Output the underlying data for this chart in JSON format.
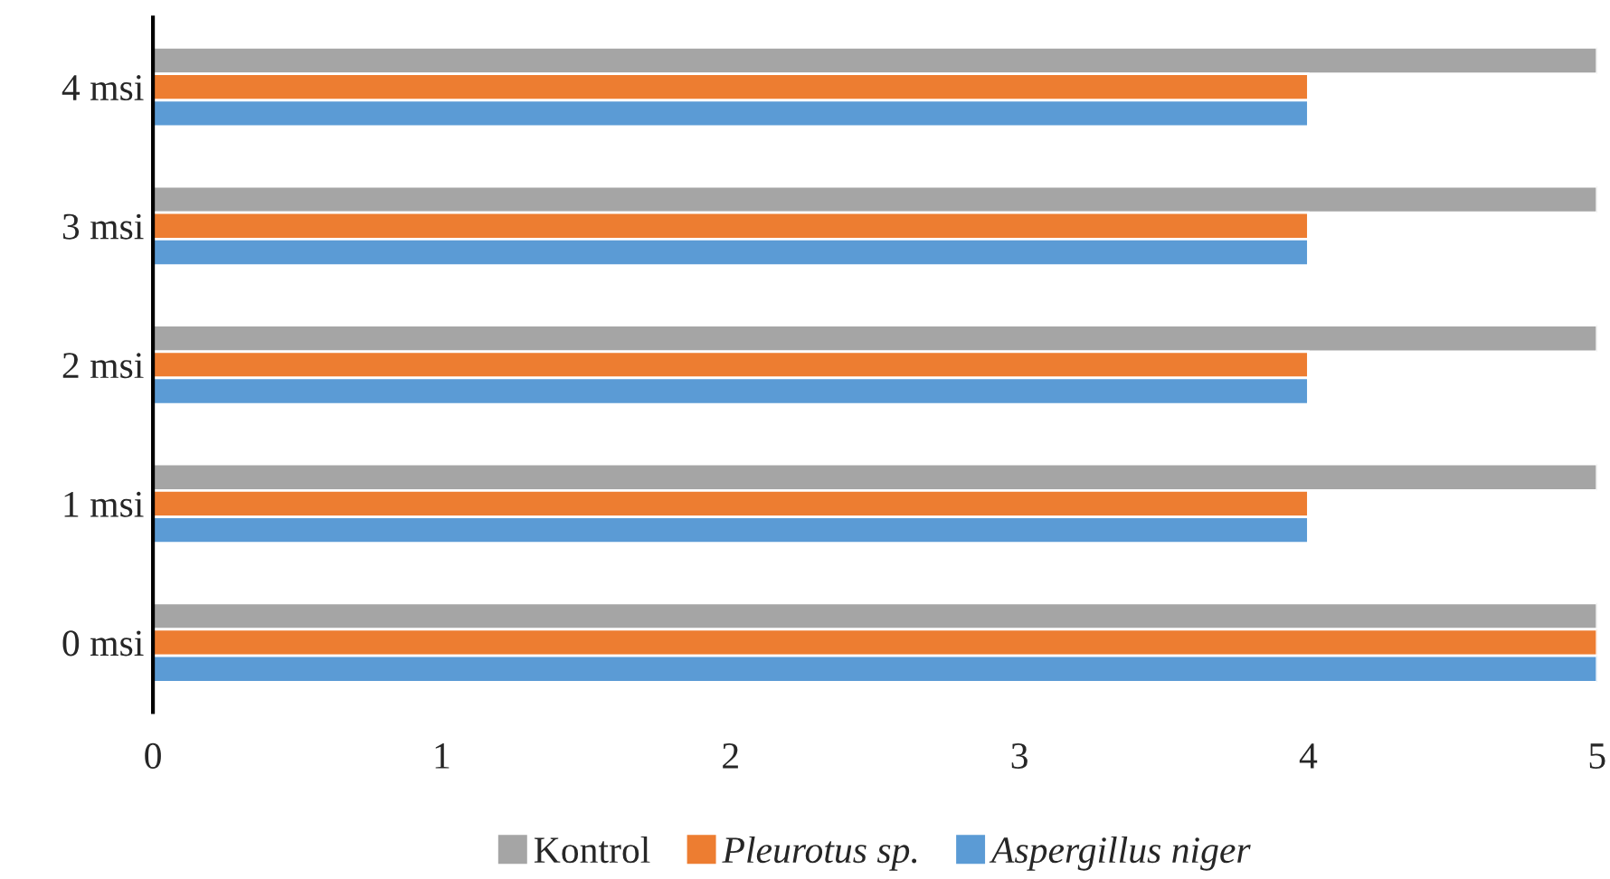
{
  "chart_data": {
    "type": "bar",
    "orientation": "horizontal",
    "categories": [
      "4 msi",
      "3 msi",
      "2 msi",
      "1 msi",
      "0 msi"
    ],
    "series": [
      {
        "name": "Kontrol",
        "color": "#a5a5a5",
        "values": [
          5,
          5,
          5,
          5,
          5
        ]
      },
      {
        "name": "Pleurotus sp.",
        "color": "#ed7d31",
        "values": [
          4,
          4,
          4,
          4,
          5
        ]
      },
      {
        "name": "Aspergillus niger",
        "color": "#5b9bd5",
        "values": [
          4,
          4,
          4,
          4,
          5
        ]
      }
    ],
    "xlim": [
      0,
      5
    ],
    "xticks": [
      0,
      1,
      2,
      3,
      4,
      5
    ],
    "grid": false,
    "legend": "bottom"
  }
}
